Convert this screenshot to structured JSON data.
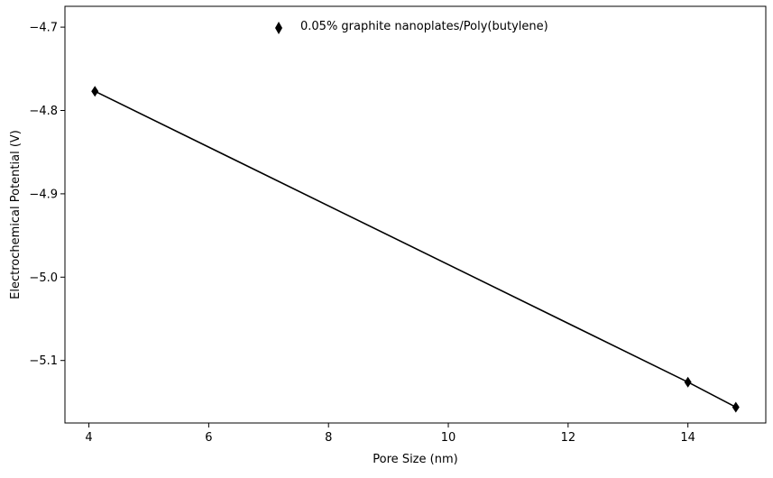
{
  "chart_data": {
    "type": "line",
    "title": "",
    "xlabel": "Pore Size (nm)",
    "ylabel": "Electrochemical Potential (V)",
    "xlim": [
      3.6,
      15.3
    ],
    "ylim": [
      -5.175,
      -4.675
    ],
    "xticks": [
      4,
      6,
      8,
      10,
      12,
      14
    ],
    "yticks": [
      -4.7,
      -4.8,
      -4.9,
      -5.0,
      -5.1
    ],
    "xtick_labels": [
      "4",
      "6",
      "8",
      "10",
      "12",
      "14"
    ],
    "ytick_labels": [
      "−4.7",
      "−4.8",
      "−4.9",
      "−5.0",
      "−5.1"
    ],
    "grid": false,
    "legend_position": "top-center",
    "series": [
      {
        "name": "0.05% graphite nanoplates/Poly(butylene)",
        "marker": "thin-diamond",
        "color": "#000000",
        "x": [
          4.1,
          14.0,
          14.8
        ],
        "y": [
          -4.777,
          -5.126,
          -5.156
        ]
      }
    ]
  }
}
